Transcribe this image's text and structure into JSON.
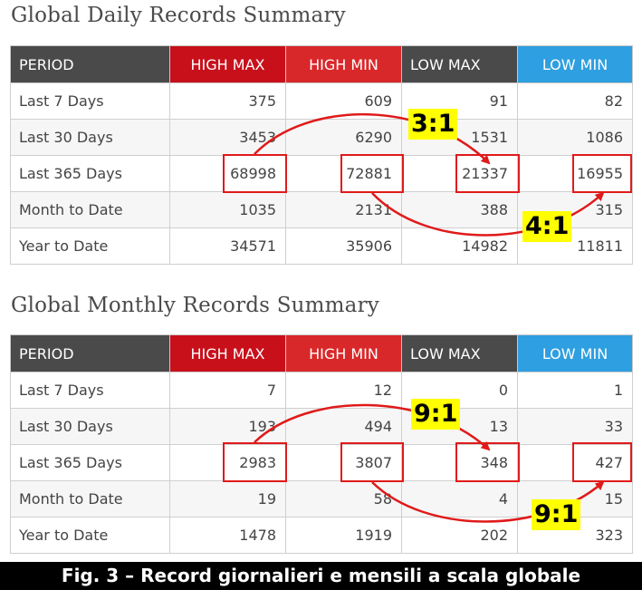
{
  "daily": {
    "title": "Global Daily Records Summary",
    "headers": [
      "PERIOD",
      "HIGH MAX",
      "HIGH MIN",
      "LOW MAX",
      "LOW MIN"
    ],
    "rows": [
      {
        "period": "Last 7 Days",
        "hmax": "375",
        "hmin": "609",
        "lmax": "91",
        "lmin": "82"
      },
      {
        "period": "Last 30 Days",
        "hmax": "3453",
        "hmin": "6290",
        "lmax": "1531",
        "lmin": "1086"
      },
      {
        "period": "Last 365 Days",
        "hmax": "68998",
        "hmin": "72881",
        "lmax": "21337",
        "lmin": "16955"
      },
      {
        "period": "Month to Date",
        "hmax": "1035",
        "hmin": "2131",
        "lmax": "388",
        "lmin": "315"
      },
      {
        "period": "Year to Date",
        "hmax": "34571",
        "hmin": "35906",
        "lmax": "14982",
        "lmin": "11811"
      }
    ],
    "ratio_max": "3:1",
    "ratio_min": "4:1"
  },
  "monthly": {
    "title": "Global Monthly Records Summary",
    "headers": [
      "PERIOD",
      "HIGH MAX",
      "HIGH MIN",
      "LOW MAX",
      "LOW MIN"
    ],
    "rows": [
      {
        "period": "Last 7 Days",
        "hmax": "7",
        "hmin": "12",
        "lmax": "0",
        "lmin": "1"
      },
      {
        "period": "Last 30 Days",
        "hmax": "193",
        "hmin": "494",
        "lmax": "13",
        "lmin": "33"
      },
      {
        "period": "Last 365 Days",
        "hmax": "2983",
        "hmin": "3807",
        "lmax": "348",
        "lmin": "427"
      },
      {
        "period": "Month to Date",
        "hmax": "19",
        "hmin": "58",
        "lmax": "4",
        "lmin": "15"
      },
      {
        "period": "Year to Date",
        "hmax": "1478",
        "hmin": "1919",
        "lmax": "202",
        "lmin": "323"
      }
    ],
    "ratio_max": "9:1",
    "ratio_min": "9:1"
  },
  "caption": "Fig. 3 – Record giornalieri e mensili a scala globale",
  "colors": {
    "header_dark": "#4a4a4a",
    "high_max": "#c8101b",
    "high_min": "#d9282a",
    "low_min": "#2e9fe0",
    "highlight_box": "#e01a1a",
    "ratio_label_bg": "#ffff00"
  }
}
